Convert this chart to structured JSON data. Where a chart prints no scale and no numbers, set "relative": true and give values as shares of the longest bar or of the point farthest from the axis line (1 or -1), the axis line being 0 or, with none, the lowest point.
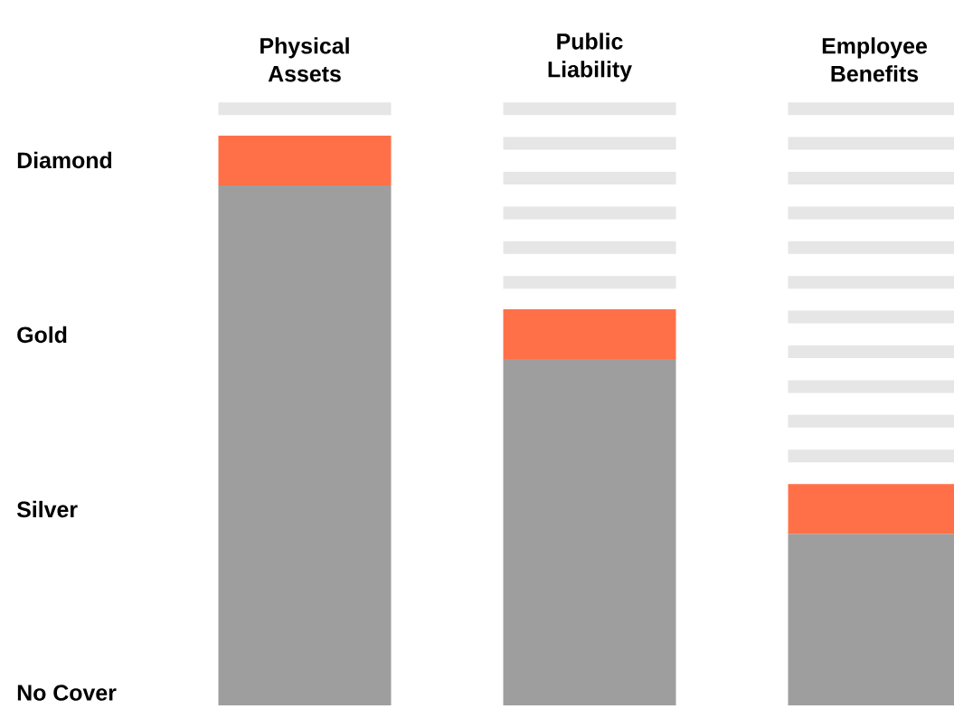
{
  "chart_data": {
    "type": "bar",
    "relative": true,
    "categories": [
      "Physical Assets",
      "Public Liability",
      "Employee Benefits"
    ],
    "values": [
      1,
      0.666,
      0.33
    ],
    "color": "#9e9e9e",
    "annotations": [
      "Diamond",
      "Gold",
      "Silver",
      "No Cover"
    ]
  }
}
